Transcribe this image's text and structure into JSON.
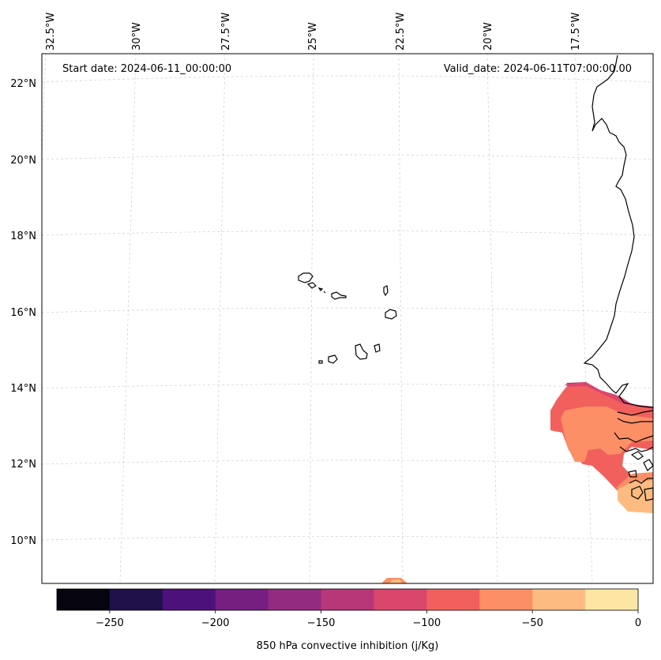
{
  "map": {
    "start_date": "Start date: 2024-06-11_00:00:00",
    "valid_date": "Valid_date: 2024-06-11T07:00:00.00",
    "lon_labels": [
      "32.5°W",
      "30°W",
      "27.5°W",
      "25°W",
      "22.5°W",
      "20°W",
      "17.5°W"
    ],
    "lat_labels": [
      "22°N",
      "20°N",
      "18°N",
      "16°N",
      "14°N",
      "12°N",
      "10°N"
    ],
    "field": "850 hPa convective inhibition"
  },
  "colorbar": {
    "label": "850 hPa convective inhibition (j/Kg)",
    "tick_labels": [
      "−250",
      "−200",
      "−150",
      "−100",
      "−50",
      "0"
    ],
    "levels": [
      -275,
      -250,
      -225,
      -200,
      -175,
      -150,
      -125,
      -100,
      -75,
      -50,
      -25,
      0
    ],
    "colors": [
      "#05040f",
      "#21114a",
      "#4d117b",
      "#761f81",
      "#932b80",
      "#b73779",
      "#db466c",
      "#f1605d",
      "#fc8f65",
      "#febb81",
      "#fde6a3"
    ]
  }
}
